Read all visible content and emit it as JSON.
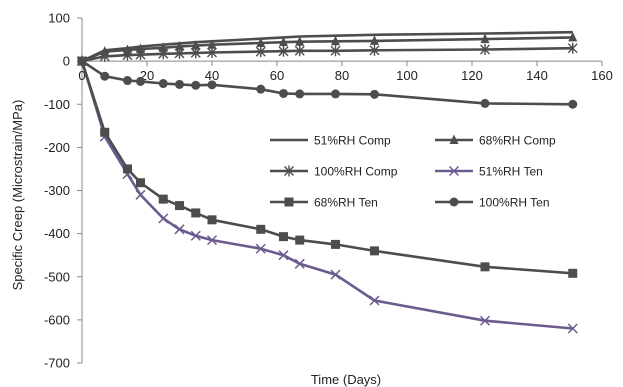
{
  "chart_data": {
    "type": "line",
    "title": "",
    "xlabel": "Time (Days)",
    "ylabel": "Specific Creep (Microstrain/MPa)",
    "xlim": [
      0,
      160
    ],
    "ylim": [
      -700,
      100
    ],
    "xticks": [
      0,
      20,
      40,
      60,
      80,
      100,
      120,
      140,
      160
    ],
    "yticks": [
      100,
      0,
      -100,
      -200,
      -300,
      -400,
      -500,
      -600,
      -700
    ],
    "grid": false,
    "legend_position": "center-right",
    "series": [
      {
        "name": "51%RH Comp",
        "marker": "none",
        "color": "#4d4d4d",
        "x": [
          0,
          7,
          14,
          18,
          25,
          30,
          35,
          40,
          55,
          62,
          67,
          78,
          90,
          124,
          151
        ],
        "y": [
          0,
          25,
          30,
          34,
          38,
          41,
          44,
          46,
          52,
          55,
          57,
          59,
          61,
          64,
          67
        ]
      },
      {
        "name": "68%RH Comp",
        "marker": "triangle",
        "color": "#4d4d4d",
        "x": [
          0,
          7,
          14,
          18,
          25,
          30,
          35,
          40,
          55,
          62,
          67,
          78,
          90,
          124,
          151
        ],
        "y": [
          0,
          22,
          26,
          28,
          31,
          34,
          36,
          38,
          42,
          44,
          45,
          46,
          47,
          51,
          55
        ]
      },
      {
        "name": "100%RH Comp",
        "marker": "asterisk",
        "color": "#4d4d4d",
        "x": [
          0,
          7,
          14,
          18,
          25,
          30,
          35,
          40,
          55,
          62,
          67,
          78,
          90,
          124,
          151
        ],
        "y": [
          0,
          11,
          14,
          15,
          17,
          18,
          19,
          20,
          22,
          23,
          24,
          24,
          25,
          27,
          30
        ]
      },
      {
        "name": "51%RH Ten",
        "marker": "x",
        "color": "#6b5b8f",
        "x": [
          0,
          7,
          14,
          18,
          25,
          30,
          35,
          40,
          55,
          62,
          67,
          78,
          90,
          124,
          151
        ],
        "y": [
          0,
          -175,
          -262,
          -310,
          -365,
          -390,
          -405,
          -415,
          -435,
          -450,
          -470,
          -495,
          -555,
          -602,
          -620
        ]
      },
      {
        "name": "68%RH Ten",
        "marker": "square",
        "color": "#4d4d4d",
        "x": [
          0,
          7,
          14,
          18,
          25,
          30,
          35,
          40,
          55,
          62,
          67,
          78,
          90,
          124,
          151
        ],
        "y": [
          0,
          -165,
          -250,
          -282,
          -320,
          -335,
          -352,
          -368,
          -390,
          -407,
          -415,
          -425,
          -440,
          -477,
          -492
        ]
      },
      {
        "name": "100%RH Ten",
        "marker": "circle",
        "color": "#4d4d4d",
        "x": [
          0,
          7,
          14,
          18,
          25,
          30,
          35,
          40,
          55,
          62,
          67,
          78,
          90,
          124,
          151
        ],
        "y": [
          0,
          -35,
          -45,
          -47,
          -52,
          -54,
          -56,
          -55,
          -65,
          -75,
          -76,
          -76,
          -77,
          -98,
          -100
        ]
      }
    ]
  }
}
